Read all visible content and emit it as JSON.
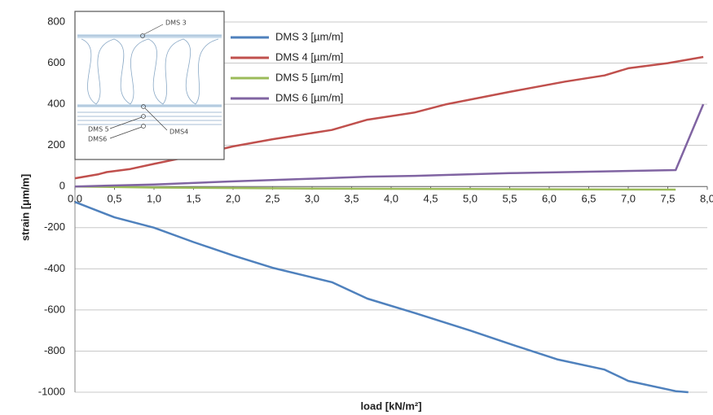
{
  "chart_data": {
    "type": "line",
    "xlabel": "load [kN/m²]",
    "ylabel": "strain [μm/m]",
    "xlim": [
      0,
      8
    ],
    "ylim": [
      -1000,
      800
    ],
    "xticks": [
      {
        "value": 0,
        "label": "0,0"
      },
      {
        "value": 0.5,
        "label": "0,5"
      },
      {
        "value": 1,
        "label": "1,0"
      },
      {
        "value": 1.5,
        "label": "1,5"
      },
      {
        "value": 2,
        "label": "2,0"
      },
      {
        "value": 2.5,
        "label": "2,5"
      },
      {
        "value": 3,
        "label": "3,0"
      },
      {
        "value": 3.5,
        "label": "3,5"
      },
      {
        "value": 4,
        "label": "4,0"
      },
      {
        "value": 4.5,
        "label": "4,5"
      },
      {
        "value": 5,
        "label": "5,0"
      },
      {
        "value": 5.5,
        "label": "5,5"
      },
      {
        "value": 6,
        "label": "6,0"
      },
      {
        "value": 6.5,
        "label": "6,5"
      },
      {
        "value": 7,
        "label": "7,0"
      },
      {
        "value": 7.5,
        "label": "7,5"
      },
      {
        "value": 8,
        "label": "8,0"
      }
    ],
    "yticks": [
      800,
      600,
      400,
      200,
      0,
      -200,
      -400,
      -600,
      -800,
      -1000
    ],
    "grid": true,
    "inset_labels": [
      "DMS 3",
      "DMS 5",
      "DMS6",
      "DMS4"
    ],
    "series": [
      {
        "name": "DMS 3 [µm/m]",
        "color": "#4f81bd",
        "x": [
          0,
          0.3,
          0.5,
          1,
          1.5,
          2,
          2.5,
          3.25,
          3.7,
          4.3,
          5,
          5.5,
          6.1,
          6.7,
          7,
          7.6,
          7.76
        ],
        "values": [
          -75,
          -120,
          -150,
          -200,
          -270,
          -335,
          -395,
          -465,
          -545,
          -615,
          -700,
          -765,
          -840,
          -890,
          -945,
          -995,
          -1000
        ]
      },
      {
        "name": "DMS 4 [µm/m]",
        "color": "#c0504d",
        "x": [
          0,
          0.3,
          0.4,
          0.7,
          1,
          1.5,
          2,
          2.5,
          3.25,
          3.7,
          4.3,
          4.7,
          5.5,
          6.2,
          6.7,
          7,
          7.5,
          7.95
        ],
        "values": [
          40,
          60,
          70,
          85,
          110,
          150,
          195,
          230,
          275,
          325,
          360,
          400,
          460,
          510,
          540,
          575,
          600,
          630
        ]
      },
      {
        "name": "DMS 5 [µm/m]",
        "color": "#9bbb59",
        "x": [
          0,
          1,
          3,
          5,
          7.6
        ],
        "values": [
          0,
          -5,
          -10,
          -12,
          -15
        ]
      },
      {
        "name": "DMS 6 [µm/m]",
        "color": "#8064a2",
        "x": [
          0,
          1,
          2,
          3,
          3.7,
          4.3,
          5.5,
          6.5,
          7.6,
          7.95
        ],
        "values": [
          0,
          10,
          25,
          38,
          48,
          52,
          65,
          72,
          80,
          400
        ]
      }
    ]
  }
}
